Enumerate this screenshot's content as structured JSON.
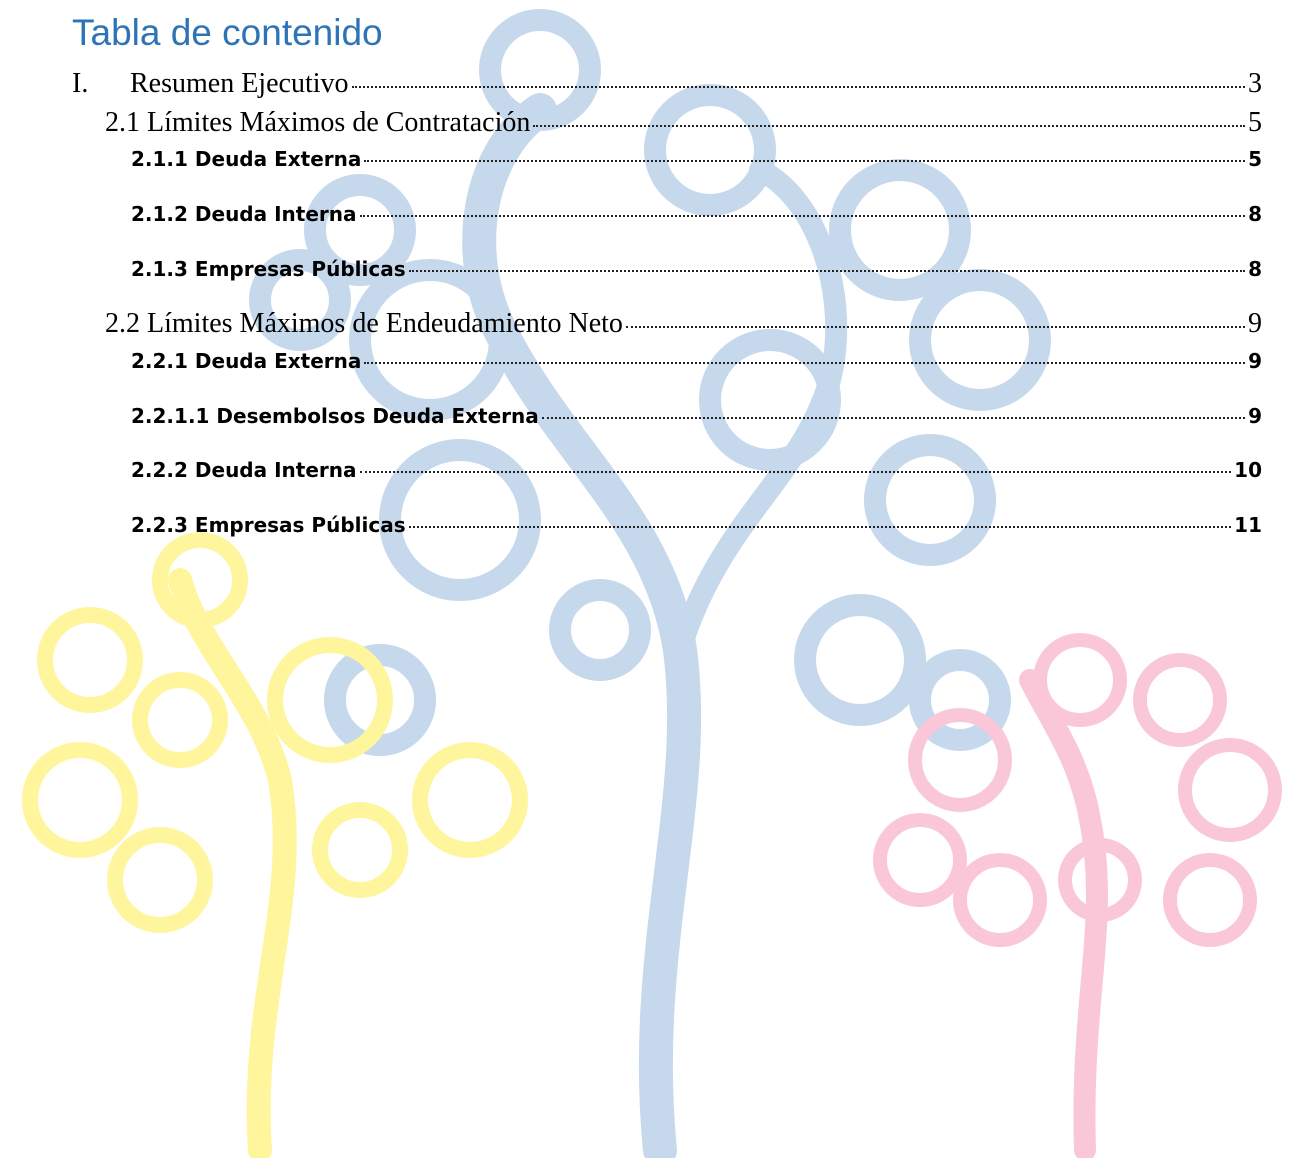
{
  "header": {
    "title": "Tabla de contenido"
  },
  "toc": {
    "entries": [
      {
        "number": "I.",
        "text": "Resumen Ejecutivo",
        "page": "3"
      },
      {
        "text": "2.1 Límites Máximos de Contratación",
        "page": "5"
      },
      {
        "text": "2.1.1 Deuda Externa",
        "page": "5"
      },
      {
        "text": "2.1.2 Deuda Interna",
        "page": "8"
      },
      {
        "text": "2.1.3 Empresas Públicas",
        "page": "8"
      },
      {
        "text": "2.2 Límites Máximos de Endeudamiento Neto",
        "page": "9"
      },
      {
        "text": "2.2.1 Deuda Externa",
        "page": "9"
      },
      {
        "text": "2.2.1.1 Desembolsos Deuda Externa",
        "page": "9"
      },
      {
        "text": "2.2.2 Deuda Interna",
        "page": "10"
      },
      {
        "text": "2.2.3 Empresas Públicas",
        "page": "11"
      }
    ]
  }
}
